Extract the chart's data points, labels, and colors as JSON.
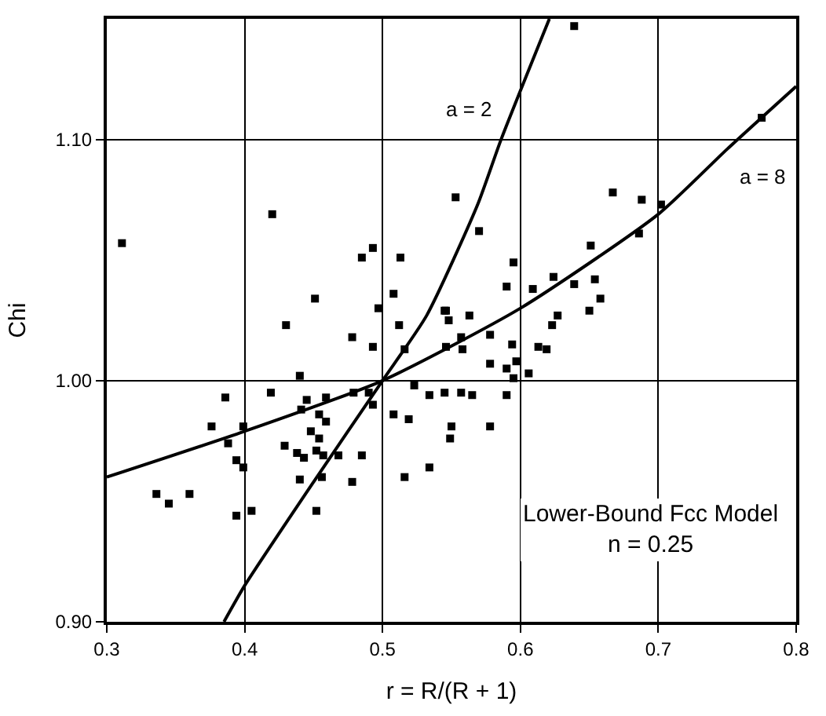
{
  "chart_data": {
    "type": "scatter",
    "xlabel": "r = R/(R + 1)",
    "ylabel": "Chi",
    "xlim": [
      0.3,
      0.8
    ],
    "xticks": [
      0.3,
      0.4,
      0.5,
      0.6,
      0.7,
      0.8
    ],
    "ylim": [
      0.9,
      1.15
    ],
    "yticks": [
      {
        "value": 0.9,
        "label": "0.90"
      },
      {
        "value": 1.0,
        "label": "1.00"
      },
      {
        "value": 1.1,
        "label": "1.10"
      }
    ],
    "grid": true,
    "line_style": "solid",
    "series": [
      {
        "marker": "square",
        "color": "#000000",
        "x": [
          0.311,
          0.42,
          0.493,
          0.485,
          0.513,
          0.451,
          0.508,
          0.497,
          0.545,
          0.639,
          0.775,
          0.553,
          0.57,
          0.667,
          0.688,
          0.702,
          0.686,
          0.651,
          0.595,
          0.59,
          0.609,
          0.624,
          0.639,
          0.654,
          0.658,
          0.65,
          0.627,
          0.546,
          0.563,
          0.548,
          0.623,
          0.546,
          0.557,
          0.558,
          0.578,
          0.594,
          0.613,
          0.619,
          0.578,
          0.59,
          0.597,
          0.595,
          0.606,
          0.534,
          0.545,
          0.557,
          0.565,
          0.59,
          0.55,
          0.549,
          0.578,
          0.534,
          0.512,
          0.43,
          0.478,
          0.493,
          0.516,
          0.44,
          0.386,
          0.419,
          0.445,
          0.441,
          0.459,
          0.454,
          0.459,
          0.479,
          0.49,
          0.493,
          0.523,
          0.508,
          0.519,
          0.376,
          0.388,
          0.399,
          0.394,
          0.399,
          0.429,
          0.438,
          0.443,
          0.448,
          0.454,
          0.452,
          0.457,
          0.468,
          0.485,
          0.44,
          0.456,
          0.478,
          0.516,
          0.336,
          0.345,
          0.36,
          0.394,
          0.405,
          0.452
        ],
        "values": [
          1.057,
          1.069,
          1.055,
          1.051,
          1.051,
          1.034,
          1.036,
          1.03,
          1.029,
          1.147,
          1.109,
          1.076,
          1.062,
          1.078,
          1.075,
          1.073,
          1.061,
          1.056,
          1.049,
          1.039,
          1.038,
          1.043,
          1.04,
          1.042,
          1.034,
          1.029,
          1.027,
          1.029,
          1.027,
          1.025,
          1.023,
          1.014,
          1.018,
          1.013,
          1.019,
          1.015,
          1.014,
          1.013,
          1.007,
          1.005,
          1.008,
          1.001,
          1.003,
          0.994,
          0.995,
          0.995,
          0.994,
          0.994,
          0.981,
          0.976,
          0.981,
          0.964,
          1.023,
          1.023,
          1.018,
          1.014,
          1.013,
          1.002,
          0.993,
          0.995,
          0.992,
          0.988,
          0.993,
          0.986,
          0.983,
          0.995,
          0.995,
          0.99,
          0.998,
          0.986,
          0.984,
          0.981,
          0.974,
          0.981,
          0.967,
          0.964,
          0.973,
          0.97,
          0.968,
          0.979,
          0.976,
          0.971,
          0.969,
          0.969,
          0.969,
          0.959,
          0.96,
          0.958,
          0.96,
          0.953,
          0.949,
          0.953,
          0.944,
          0.946,
          0.946
        ]
      },
      {
        "type": "line",
        "marker": "none",
        "name": "a = 2",
        "color": "#000000",
        "x": [
          0.385,
          0.4,
          0.45,
          0.5,
          0.532,
          0.569,
          0.586,
          0.621
        ],
        "values": [
          0.9,
          0.915,
          0.958,
          1.0,
          1.027,
          1.073,
          1.1,
          1.15
        ]
      },
      {
        "type": "line",
        "marker": "none",
        "name": "a = 8",
        "color": "#000000",
        "x": [
          0.3,
          0.4,
          0.5,
          0.6,
          0.7,
          0.75,
          0.8
        ],
        "values": [
          0.96,
          0.979,
          1.0,
          1.03,
          1.069,
          1.096,
          1.122
        ]
      }
    ],
    "annotations": [
      "Lower-Bound Fcc Model\nn = 0.25"
    ]
  }
}
